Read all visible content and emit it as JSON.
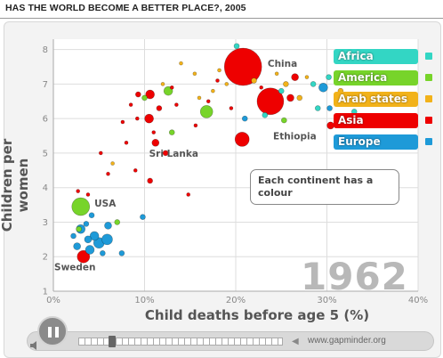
{
  "page": {
    "title": "HAS THE WORLD BECOME A BETTER PLACE?, 2005"
  },
  "note_text": "Each continent has a colour",
  "controls": {
    "play_icon": "pause-icon",
    "credit": "www.gapminder.org",
    "sound_icon": "speaker-icon"
  },
  "chart_data": {
    "type": "scatter",
    "title": "",
    "xlabel": "Child deaths before age 5 (%)",
    "ylabel": "Children per women",
    "xlim": [
      0,
      40
    ],
    "ylim": [
      1,
      8.3
    ],
    "xticks": [
      "0%",
      "10%",
      "20%",
      "30%",
      "40%"
    ],
    "yticks": [
      "1",
      "2",
      "3",
      "4",
      "5",
      "6",
      "7",
      "8"
    ],
    "grid": true,
    "year": "1962",
    "legend": [
      {
        "name": "Africa",
        "color": "#33d6c4"
      },
      {
        "name": "America",
        "color": "#77d42a"
      },
      {
        "name": "Arab states",
        "color": "#f2b21a"
      },
      {
        "name": "Asia",
        "color": "#ee0000"
      },
      {
        "name": "Europe",
        "color": "#1e9ad8"
      }
    ],
    "colors": {
      "Africa": "#33d6c4",
      "America": "#77d42a",
      "Arab states": "#f2b21a",
      "Asia": "#ee0000",
      "Europe": "#1e9ad8"
    },
    "annotations": [
      {
        "text": "China",
        "x": 23.5,
        "y": 7.5
      },
      {
        "text": "USA",
        "x": 4.5,
        "y": 3.45
      },
      {
        "text": "Sri Lanka",
        "x": 10.5,
        "y": 4.9
      },
      {
        "text": "Ethiopia",
        "x": 24.1,
        "y": 5.4
      },
      {
        "text": "Sweden",
        "x": 0.1,
        "y": 1.6
      }
    ],
    "points": [
      {
        "c": "Asia",
        "x": 20.8,
        "y": 7.5,
        "s": 21
      },
      {
        "c": "Asia",
        "x": 23.8,
        "y": 6.5,
        "s": 15
      },
      {
        "c": "Asia",
        "x": 20.7,
        "y": 5.4,
        "s": 8
      },
      {
        "c": "Asia",
        "x": 10.6,
        "y": 6.7,
        "s": 5
      },
      {
        "c": "Asia",
        "x": 11.6,
        "y": 6.3,
        "s": 3
      },
      {
        "c": "Asia",
        "x": 10.5,
        "y": 6.0,
        "s": 5
      },
      {
        "c": "Asia",
        "x": 11.2,
        "y": 5.3,
        "s": 4
      },
      {
        "c": "Asia",
        "x": 12.3,
        "y": 5.0,
        "s": 3
      },
      {
        "c": "Asia",
        "x": 10.6,
        "y": 4.2,
        "s": 3
      },
      {
        "c": "Asia",
        "x": 26.5,
        "y": 7.2,
        "s": 4
      },
      {
        "c": "Asia",
        "x": 26.0,
        "y": 6.6,
        "s": 4
      },
      {
        "c": "Asia",
        "x": 30.4,
        "y": 5.8,
        "s": 4
      },
      {
        "c": "Asia",
        "x": 3.3,
        "y": 2.0,
        "s": 7
      },
      {
        "c": "Asia",
        "x": 9.3,
        "y": 6.7,
        "s": 3
      },
      {
        "c": "America",
        "x": 3.0,
        "y": 3.45,
        "s": 10
      },
      {
        "c": "America",
        "x": 12.6,
        "y": 6.8,
        "s": 5
      },
      {
        "c": "America",
        "x": 16.8,
        "y": 6.2,
        "s": 7
      },
      {
        "c": "America",
        "x": 13.0,
        "y": 5.6,
        "s": 3
      },
      {
        "c": "America",
        "x": 25.3,
        "y": 5.95,
        "s": 3
      },
      {
        "c": "America",
        "x": 7.0,
        "y": 3.0,
        "s": 3
      },
      {
        "c": "America",
        "x": 10.0,
        "y": 6.6,
        "s": 3
      },
      {
        "c": "America",
        "x": 2.8,
        "y": 2.8,
        "s": 3
      },
      {
        "c": "Europe",
        "x": 3.0,
        "y": 2.8,
        "s": 5
      },
      {
        "c": "Europe",
        "x": 4.5,
        "y": 2.6,
        "s": 5
      },
      {
        "c": "Europe",
        "x": 5.0,
        "y": 2.4,
        "s": 6
      },
      {
        "c": "Europe",
        "x": 4.0,
        "y": 2.2,
        "s": 5
      },
      {
        "c": "Europe",
        "x": 5.9,
        "y": 2.5,
        "s": 6
      },
      {
        "c": "Europe",
        "x": 6.0,
        "y": 2.9,
        "s": 4
      },
      {
        "c": "Europe",
        "x": 2.6,
        "y": 2.3,
        "s": 4
      },
      {
        "c": "Europe",
        "x": 3.6,
        "y": 2.95,
        "s": 3
      },
      {
        "c": "Europe",
        "x": 7.5,
        "y": 2.1,
        "s": 3
      },
      {
        "c": "Europe",
        "x": 2.2,
        "y": 2.6,
        "s": 3
      },
      {
        "c": "Europe",
        "x": 4.2,
        "y": 3.2,
        "s": 3
      },
      {
        "c": "Europe",
        "x": 5.4,
        "y": 2.1,
        "s": 3
      },
      {
        "c": "Europe",
        "x": 3.8,
        "y": 2.5,
        "s": 4
      },
      {
        "c": "Europe",
        "x": 9.8,
        "y": 3.15,
        "s": 3
      },
      {
        "c": "Europe",
        "x": 21.0,
        "y": 6.0,
        "s": 3
      },
      {
        "c": "Europe",
        "x": 29.6,
        "y": 6.9,
        "s": 5
      },
      {
        "c": "Europe",
        "x": 30.3,
        "y": 6.3,
        "s": 3
      },
      {
        "c": "Africa",
        "x": 23.2,
        "y": 6.1,
        "s": 3
      },
      {
        "c": "Africa",
        "x": 25.0,
        "y": 6.8,
        "s": 3
      },
      {
        "c": "Africa",
        "x": 28.5,
        "y": 7.0,
        "s": 3
      },
      {
        "c": "Africa",
        "x": 30.2,
        "y": 7.2,
        "s": 3
      },
      {
        "c": "Africa",
        "x": 20.1,
        "y": 8.1,
        "s": 3
      },
      {
        "c": "Africa",
        "x": 33.0,
        "y": 6.2,
        "s": 3
      },
      {
        "c": "Africa",
        "x": 29.0,
        "y": 6.3,
        "s": 3
      },
      {
        "c": "Arab states",
        "x": 22.0,
        "y": 7.1,
        "s": 3
      },
      {
        "c": "Arab states",
        "x": 25.5,
        "y": 7.0,
        "s": 3
      },
      {
        "c": "Arab states",
        "x": 15.5,
        "y": 7.3,
        "s": 2
      },
      {
        "c": "Arab states",
        "x": 27.0,
        "y": 6.6,
        "s": 3
      },
      {
        "c": "Arab states",
        "x": 31.5,
        "y": 6.8,
        "s": 3
      },
      {
        "c": "Arab states",
        "x": 14.0,
        "y": 7.6,
        "s": 2
      },
      {
        "c": "Arab states",
        "x": 19.0,
        "y": 7.0,
        "s": 2
      },
      {
        "c": "Arab states",
        "x": 17.5,
        "y": 6.8,
        "s": 2
      },
      {
        "c": "Arab states",
        "x": 24.5,
        "y": 7.3,
        "s": 2
      },
      {
        "c": "Arab states",
        "x": 6.5,
        "y": 4.7,
        "s": 2
      },
      {
        "c": "Arab states",
        "x": 12.0,
        "y": 7.0,
        "s": 2
      },
      {
        "c": "Arab states",
        "x": 18.2,
        "y": 7.4,
        "s": 2
      },
      {
        "c": "Arab states",
        "x": 27.8,
        "y": 7.2,
        "s": 2
      },
      {
        "c": "Arab states",
        "x": 16.0,
        "y": 6.6,
        "s": 2
      },
      {
        "c": "Asia",
        "x": 8.5,
        "y": 6.4,
        "s": 2
      },
      {
        "c": "Asia",
        "x": 7.6,
        "y": 5.9,
        "s": 2
      },
      {
        "c": "Asia",
        "x": 9.2,
        "y": 6.0,
        "s": 2
      },
      {
        "c": "Asia",
        "x": 11.0,
        "y": 5.6,
        "s": 2
      },
      {
        "c": "Asia",
        "x": 13.5,
        "y": 6.4,
        "s": 2
      },
      {
        "c": "Asia",
        "x": 3.8,
        "y": 3.8,
        "s": 2
      },
      {
        "c": "Asia",
        "x": 2.7,
        "y": 3.9,
        "s": 2
      },
      {
        "c": "Asia",
        "x": 8.0,
        "y": 5.3,
        "s": 2
      },
      {
        "c": "Asia",
        "x": 5.2,
        "y": 5.0,
        "s": 2
      },
      {
        "c": "Asia",
        "x": 9.0,
        "y": 4.5,
        "s": 2
      },
      {
        "c": "Asia",
        "x": 14.8,
        "y": 3.8,
        "s": 2
      },
      {
        "c": "Asia",
        "x": 18.0,
        "y": 7.1,
        "s": 2
      },
      {
        "c": "Asia",
        "x": 22.8,
        "y": 6.9,
        "s": 2
      },
      {
        "c": "Asia",
        "x": 15.6,
        "y": 5.8,
        "s": 2
      },
      {
        "c": "Asia",
        "x": 17.0,
        "y": 6.5,
        "s": 2
      },
      {
        "c": "Asia",
        "x": 13.0,
        "y": 6.9,
        "s": 2
      },
      {
        "c": "Asia",
        "x": 19.5,
        "y": 6.3,
        "s": 2
      },
      {
        "c": "Asia",
        "x": 6.0,
        "y": 4.4,
        "s": 2
      }
    ]
  }
}
